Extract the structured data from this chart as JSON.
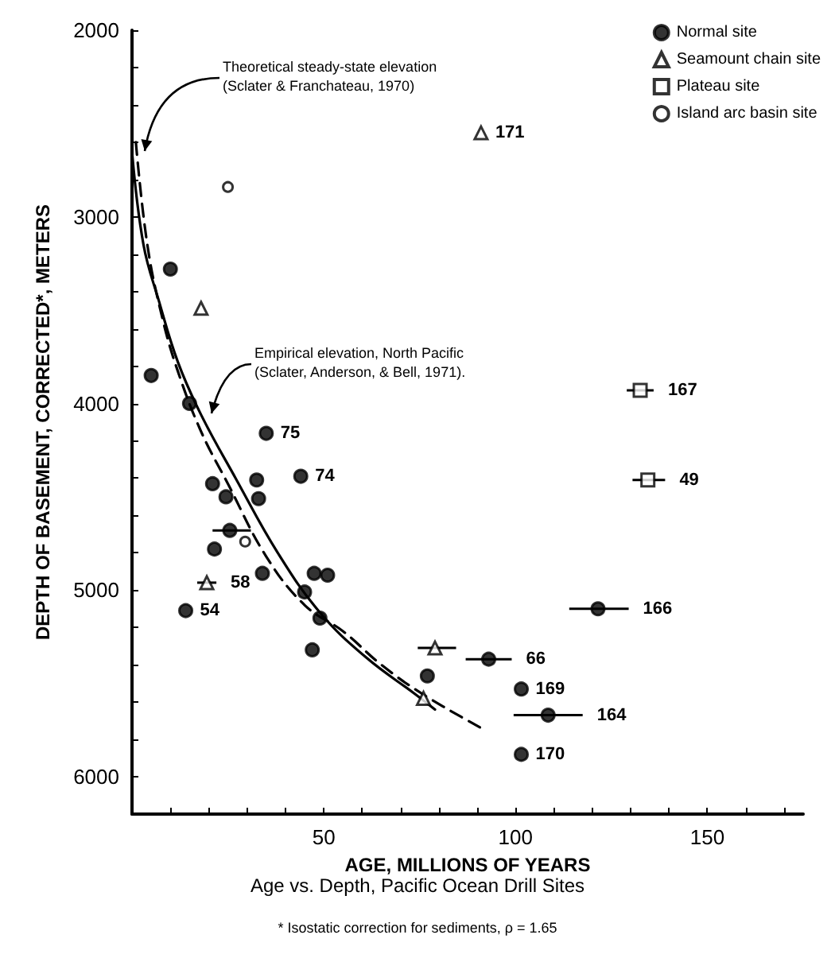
{
  "chart_data": {
    "type": "scatter",
    "title": "Age vs. Depth, Pacific Ocean Drill Sites",
    "xlabel": "AGE, MILLIONS OF YEARS",
    "ylabel": "DEPTH OF BASEMENT, CORRECTED*, METERS",
    "annotations": [
      "Theoretical steady-state elevation\n(Sclater & Franchateau, 1970)",
      "Empirical elevation, North Pacific\n(Sclater, Anderson, & Bell, 1971).",
      "* Isostatic correction for sediments, ρ = 1.65",
      {
        "text": "75",
        "x": 35,
        "y": 4160
      },
      {
        "text": "74",
        "x": 44,
        "y": 4390
      },
      {
        "text": "54",
        "x": 14,
        "y": 5110
      },
      {
        "text": "58",
        "x": 19.5,
        "y": 4960
      },
      {
        "text": "171",
        "x": 91,
        "y": 2550
      },
      {
        "text": "167",
        "x": 132.5,
        "y": 3930
      },
      {
        "text": "49",
        "x": 134.5,
        "y": 4410
      },
      {
        "text": "166",
        "x": 121.5,
        "y": 5100
      },
      {
        "text": "66",
        "x": 93,
        "y": 5370
      },
      {
        "text": "169",
        "x": 101.5,
        "y": 5530
      },
      {
        "text": "164",
        "x": 108.5,
        "y": 5670
      },
      {
        "text": "170",
        "x": 101.5,
        "y": 5880
      }
    ],
    "xlim": [
      0,
      175
    ],
    "ylim": [
      6200,
      2000
    ],
    "xticks": [
      {
        "value": 0,
        "label": null
      },
      {
        "value": 10,
        "label": null
      },
      {
        "value": 20,
        "label": null
      },
      {
        "value": 30,
        "label": null
      },
      {
        "value": 40,
        "label": null
      },
      50,
      {
        "value": 60,
        "label": null
      },
      {
        "value": 70,
        "label": null
      },
      {
        "value": 80,
        "label": null
      },
      {
        "value": 90,
        "label": null
      },
      100,
      {
        "value": 110,
        "label": null
      },
      {
        "value": 120,
        "label": null
      },
      {
        "value": 130,
        "label": null
      },
      {
        "value": 140,
        "label": null
      },
      150,
      {
        "value": 160,
        "label": null
      },
      {
        "value": 170,
        "label": null
      }
    ],
    "yticks": [
      2000,
      {
        "value": 2200,
        "label": null
      },
      {
        "value": 2400,
        "label": null
      },
      {
        "value": 2600,
        "label": null
      },
      {
        "value": 2800,
        "label": null
      },
      3000,
      {
        "value": 3200,
        "label": null
      },
      {
        "value": 3400,
        "label": null
      },
      {
        "value": 3600,
        "label": null
      },
      {
        "value": 3800,
        "label": null
      },
      4000,
      {
        "value": 4200,
        "label": null
      },
      {
        "value": 4400,
        "label": null
      },
      {
        "value": 4600,
        "label": null
      },
      {
        "value": 4800,
        "label": null
      },
      5000,
      {
        "value": 5200,
        "label": null
      },
      {
        "value": 5400,
        "label": null
      },
      {
        "value": 5600,
        "label": null
      },
      {
        "value": 5800,
        "label": null
      },
      6000
    ],
    "grid": false,
    "legend": "top right",
    "series": [
      {
        "name": "Normal site",
        "marker": "circle",
        "color": "#000000",
        "x": [
          5,
          10,
          15,
          35,
          44,
          21,
          32.5,
          24.5,
          33,
          25.5,
          21.5,
          34,
          47.5,
          51,
          45,
          49,
          47,
          14,
          121.5,
          93,
          101.5,
          108.5,
          101.5,
          77
        ],
        "values": [
          3850,
          3280,
          4000,
          4160,
          4390,
          4430,
          4410,
          4500,
          4510,
          4680,
          4780,
          4910,
          4910,
          4920,
          5010,
          5150,
          5320,
          5110,
          5100,
          5370,
          5530,
          5670,
          5880,
          5460
        ],
        "xerrors": [
          null,
          null,
          null,
          null,
          null,
          null,
          null,
          null,
          null,
          [
            21,
            31
          ],
          null,
          null,
          null,
          null,
          null,
          null,
          null,
          null,
          [
            114,
            129.5
          ],
          [
            87,
            99
          ],
          null,
          [
            99.5,
            117.5
          ],
          null,
          null
        ]
      },
      {
        "name": "Seamount chain site",
        "marker": "triangle",
        "color": "#000000",
        "x": [
          18,
          19.5,
          91,
          79,
          76
        ],
        "values": [
          3490,
          4960,
          2550,
          5310,
          5580
        ],
        "xerrors": [
          null,
          [
            17,
            22
          ],
          null,
          [
            74.5,
            84.5
          ],
          null
        ]
      },
      {
        "name": "Plateau site",
        "marker": "square",
        "color": "#000000",
        "x": [
          132.5,
          134.5
        ],
        "values": [
          3930,
          4410
        ],
        "xerrors": [
          [
            129,
            136
          ],
          [
            130.5,
            139
          ]
        ]
      },
      {
        "name": "Island arc basin site",
        "marker": "circle",
        "color": "#000000",
        "x": [
          25,
          29.5
        ],
        "values": [
          2840,
          4740
        ]
      },
      {
        "type": "line",
        "marker": "none",
        "line_style": "solid",
        "color": "#000000",
        "x": [
          0,
          3,
          7,
          12,
          18,
          27,
          38,
          49,
          61,
          74,
          79
        ],
        "values": [
          2650,
          3150,
          3450,
          3780,
          4060,
          4400,
          4800,
          5120,
          5360,
          5560,
          5640
        ]
      },
      {
        "type": "line",
        "marker": "none",
        "line_style": "dashed",
        "color": "#000000",
        "x": [
          1,
          4,
          8,
          12,
          18,
          25,
          35,
          45,
          55,
          65,
          76,
          92
        ],
        "values": [
          2600,
          3150,
          3550,
          3830,
          4150,
          4430,
          4820,
          5080,
          5220,
          5400,
          5560,
          5750
        ]
      }
    ]
  }
}
